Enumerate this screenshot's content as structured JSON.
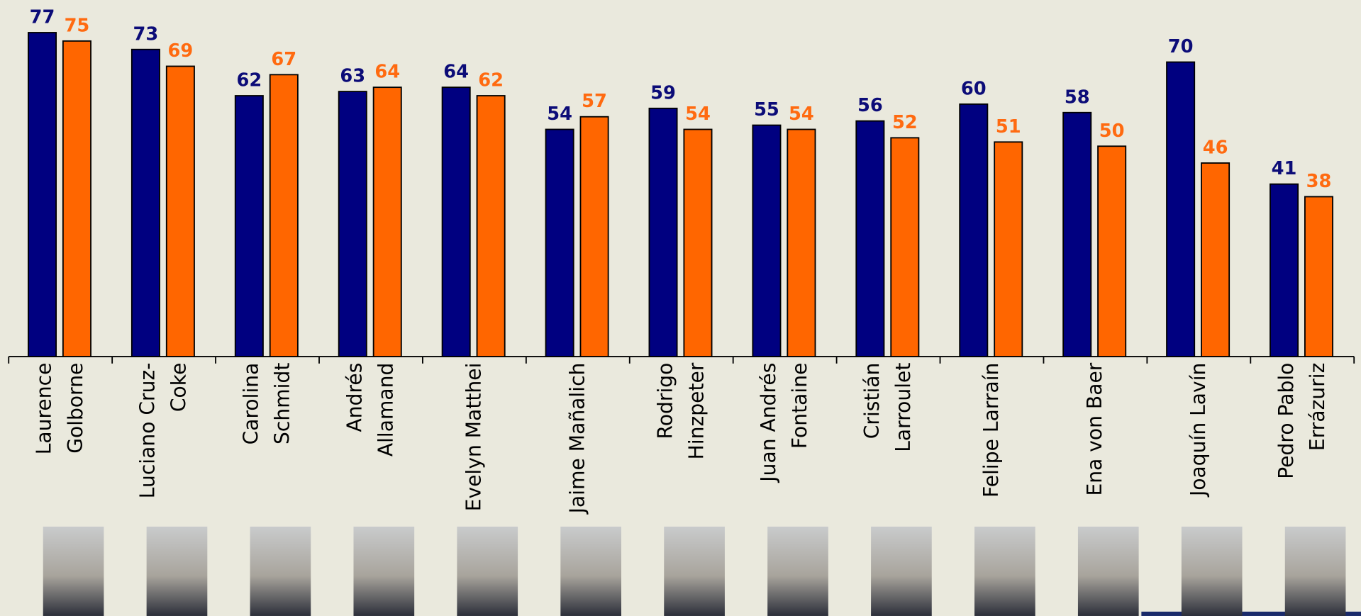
{
  "chart_data": {
    "type": "bar",
    "categories": [
      "Laurence Golborne",
      "Luciano Cruz-Coke",
      "Carolina Schmidt",
      "Andrés Allamand",
      "Evelyn Matthei",
      "Jaime Mañalich",
      "Rodrigo Hinzpeter",
      "Juan Andrés Fontaine",
      "Cristián Larroulet",
      "Felipe Larraín",
      "Ena von Baer",
      "Joaquín Lavín",
      "Pedro Pablo Errázuriz"
    ],
    "series": [
      {
        "color": "#000080",
        "label_color": "#0c0c78",
        "values": [
          77,
          73,
          62,
          63,
          64,
          54,
          59,
          55,
          56,
          60,
          58,
          70,
          41
        ]
      },
      {
        "color": "#ff6600",
        "label_color": "#ff6a10",
        "values": [
          75,
          69,
          67,
          64,
          62,
          57,
          54,
          54,
          52,
          51,
          50,
          46,
          38
        ]
      }
    ],
    "ylim": [
      0,
      80
    ]
  }
}
